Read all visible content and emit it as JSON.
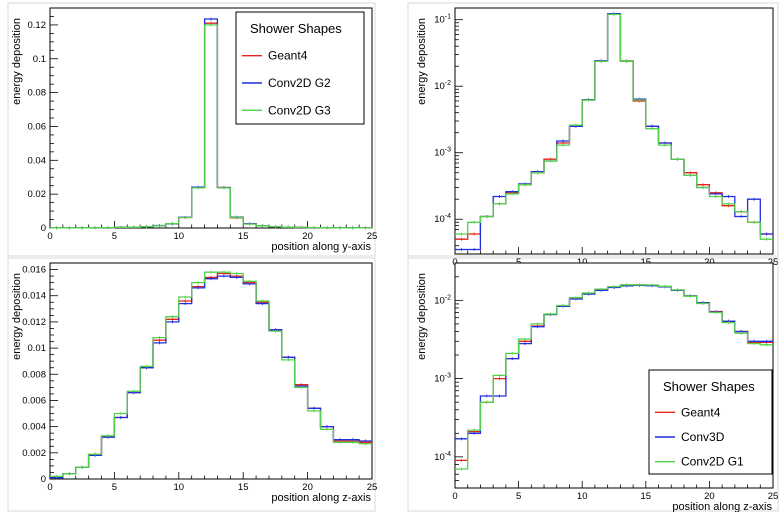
{
  "chart_data": [
    {
      "type": "line",
      "step": true,
      "xlabel": "position along y-axis",
      "ylabel": "energy deposition",
      "xlim": [
        0,
        25
      ],
      "ylim": [
        0,
        0.13
      ],
      "log_y": false,
      "x_ticks": [
        "0",
        "5",
        "10",
        "15",
        "20",
        "25"
      ],
      "y_ticks": [
        {
          "v": 0,
          "label": "0"
        },
        {
          "v": 0.02,
          "label": "0.02"
        },
        {
          "v": 0.04,
          "label": "0.04"
        },
        {
          "v": 0.06,
          "label": "0.06"
        },
        {
          "v": 0.08,
          "label": "0.08"
        },
        {
          "v": 0.1,
          "label": "0.1"
        },
        {
          "v": 0.12,
          "label": "0.12"
        }
      ],
      "legend": {
        "title": "Shower Shapes",
        "position": "top-right"
      },
      "bin_edges": [
        0,
        1,
        2,
        3,
        4,
        5,
        6,
        7,
        8,
        9,
        10,
        11,
        12,
        13,
        14,
        15,
        16,
        17,
        18,
        19,
        20,
        21,
        22,
        23,
        24,
        25
      ],
      "series": [
        {
          "name": "Geant4",
          "color": "#e8211a",
          "values": [
            5e-05,
            6e-05,
            0.00011,
            0.00017,
            0.00025,
            0.00033,
            0.0005,
            0.0008,
            0.0014,
            0.0025,
            0.0062,
            0.024,
            0.121,
            0.024,
            0.006,
            0.0025,
            0.0014,
            0.0008,
            0.0005,
            0.00033,
            0.00025,
            0.00016,
            0.00013,
            9e-05,
            6e-05
          ]
        },
        {
          "name": "Conv2D G2",
          "color": "#1f2fe0",
          "values": [
            3.5e-05,
            3.5e-05,
            0.00011,
            0.00022,
            0.00026,
            0.00034,
            0.00052,
            0.00075,
            0.0015,
            0.0025,
            0.0063,
            0.0241,
            0.1235,
            0.0238,
            0.0064,
            0.0025,
            0.0014,
            0.0008,
            0.00046,
            0.0003,
            0.00024,
            0.00022,
            0.00011,
            0.0002,
            6e-05
          ]
        },
        {
          "name": "Conv2D G3",
          "color": "#55d04c",
          "values": [
            6e-05,
            9e-05,
            0.00011,
            0.00017,
            0.00024,
            0.00033,
            0.0005,
            0.00075,
            0.0013,
            0.0026,
            0.0062,
            0.0237,
            0.12,
            0.0237,
            0.0062,
            0.0023,
            0.0013,
            0.0008,
            0.00046,
            0.0003,
            0.00022,
            0.00017,
            0.00013,
            9e-05,
            5e-05
          ]
        }
      ]
    },
    {
      "type": "line",
      "step": true,
      "xlabel": "position along y-axis",
      "ylabel": "energy deposition",
      "xlim": [
        0,
        25
      ],
      "ylim": [
        3e-05,
        0.15
      ],
      "log_y": true,
      "x_ticks": [
        "0",
        "5",
        "10",
        "15",
        "20",
        "25"
      ],
      "y_ticks": [
        {
          "v": 0.0001,
          "exp": "-4"
        },
        {
          "v": 0.001,
          "exp": "-3"
        },
        {
          "v": 0.01,
          "exp": "-2"
        },
        {
          "v": 0.1,
          "exp": "-1"
        }
      ],
      "same_data_as_panel": 0
    },
    {
      "type": "line",
      "step": true,
      "xlabel": "position along z-axis",
      "ylabel": "energy deposition",
      "xlim": [
        0,
        25
      ],
      "ylim": [
        0,
        0.0165
      ],
      "log_y": false,
      "x_ticks": [
        "0",
        "5",
        "10",
        "15",
        "20",
        "25"
      ],
      "y_ticks": [
        {
          "v": 0,
          "label": "0"
        },
        {
          "v": 0.002,
          "label": "0.002"
        },
        {
          "v": 0.004,
          "label": "0.004"
        },
        {
          "v": 0.006,
          "label": "0.006"
        },
        {
          "v": 0.008,
          "label": "0.008"
        },
        {
          "v": 0.01,
          "label": "0.01"
        },
        {
          "v": 0.012,
          "label": "0.012"
        },
        {
          "v": 0.014,
          "label": "0.014"
        },
        {
          "v": 0.016,
          "label": "0.016"
        }
      ],
      "bin_edges": [
        0,
        1,
        2,
        3,
        4,
        5,
        6,
        7,
        8,
        9,
        10,
        11,
        12,
        13,
        14,
        15,
        16,
        17,
        18,
        19,
        20,
        21,
        22,
        23,
        24,
        25
      ],
      "series": [
        {
          "color": "#e8211a",
          "values": [
            0.00015,
            0.0004,
            0.0009,
            0.0019,
            0.0032,
            0.0047,
            0.0066,
            0.0085,
            0.0106,
            0.0122,
            0.0136,
            0.0147,
            0.0154,
            0.0157,
            0.0155,
            0.015,
            0.0135,
            0.0114,
            0.0093,
            0.0072,
            0.0054,
            0.004,
            0.0029,
            0.0029,
            0.0028
          ]
        },
        {
          "color": "#1f2fe0",
          "values": [
            0.0001,
            0.0004,
            0.0009,
            0.0018,
            0.0032,
            0.0047,
            0.0066,
            0.0085,
            0.0104,
            0.012,
            0.0134,
            0.0146,
            0.0153,
            0.0155,
            0.0154,
            0.0149,
            0.0134,
            0.0114,
            0.0093,
            0.0071,
            0.0054,
            0.004,
            0.003,
            0.003,
            0.0029
          ]
        },
        {
          "color": "#55d04c",
          "values": [
            0.0002,
            0.0004,
            0.0009,
            0.0019,
            0.0033,
            0.005,
            0.0067,
            0.0086,
            0.0108,
            0.0124,
            0.0139,
            0.015,
            0.0158,
            0.0158,
            0.0157,
            0.0151,
            0.0136,
            0.0113,
            0.0091,
            0.007,
            0.0052,
            0.0038,
            0.0028,
            0.0028,
            0.0027
          ]
        }
      ]
    },
    {
      "type": "line",
      "step": true,
      "xlabel": "position along z-axis",
      "ylabel": "energy deposition",
      "xlim": [
        0,
        25
      ],
      "ylim": [
        4e-05,
        0.03
      ],
      "log_y": true,
      "x_ticks": [
        "0",
        "5",
        "10",
        "15",
        "20",
        "25"
      ],
      "y_ticks": [
        {
          "v": 0.0001,
          "exp": "-4"
        },
        {
          "v": 0.001,
          "exp": "-3"
        },
        {
          "v": 0.01,
          "exp": "-2"
        }
      ],
      "legend": {
        "title": "Shower Shapes",
        "position": "bottom-right"
      },
      "bin_edges": [
        0,
        1,
        2,
        3,
        4,
        5,
        6,
        7,
        8,
        9,
        10,
        11,
        12,
        13,
        14,
        15,
        16,
        17,
        18,
        19,
        20,
        21,
        22,
        23,
        24,
        25
      ],
      "series": [
        {
          "name": "Geant4",
          "color": "#e8211a",
          "values": [
            9e-05,
            0.00021,
            0.0005,
            0.001,
            0.0018,
            0.003,
            0.0047,
            0.0066,
            0.0085,
            0.0106,
            0.0122,
            0.0136,
            0.0147,
            0.0154,
            0.0157,
            0.0155,
            0.015,
            0.0135,
            0.0114,
            0.0093,
            0.0072,
            0.0054,
            0.004,
            0.0029,
            0.0029
          ]
        },
        {
          "name": "Conv3D",
          "color": "#1f2fe0",
          "values": [
            0.00017,
            0.0002,
            0.0006,
            0.0006,
            0.0018,
            0.0028,
            0.0046,
            0.0066,
            0.0084,
            0.0104,
            0.012,
            0.0134,
            0.0146,
            0.0153,
            0.0155,
            0.0154,
            0.0149,
            0.0134,
            0.0114,
            0.0093,
            0.0071,
            0.0054,
            0.004,
            0.003,
            0.003
          ]
        },
        {
          "name": "Conv2D G1",
          "color": "#55d04c",
          "values": [
            7e-05,
            0.00022,
            0.0005,
            0.0011,
            0.0021,
            0.0032,
            0.005,
            0.0067,
            0.0086,
            0.0108,
            0.0124,
            0.0139,
            0.015,
            0.0158,
            0.0158,
            0.0157,
            0.0151,
            0.0136,
            0.0113,
            0.0091,
            0.007,
            0.0052,
            0.0038,
            0.0028,
            0.0027
          ]
        }
      ]
    }
  ]
}
